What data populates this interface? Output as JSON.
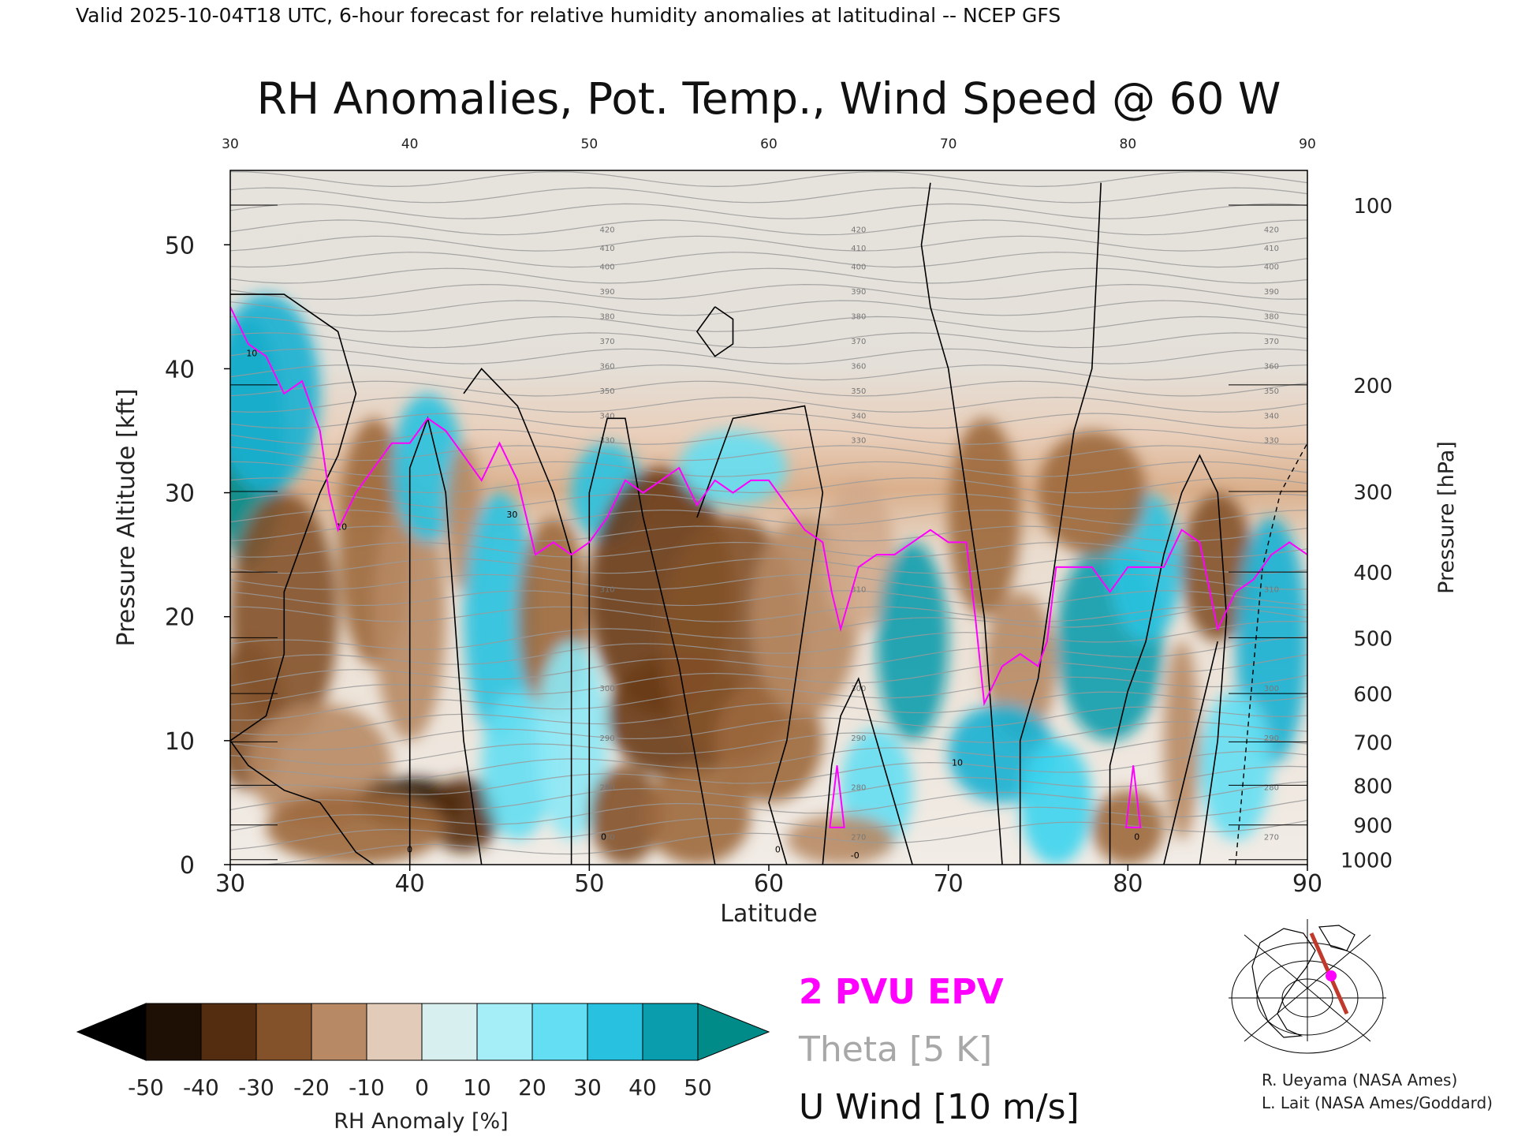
{
  "header": {
    "valid_line": "Valid 2025-10-04T18 UTC, 6-hour forecast for relative humidity anomalies at latitudinal -- NCEP GFS",
    "title": "RH Anomalies, Pot. Temp., Wind Speed @ 60 W"
  },
  "chart_data": {
    "type": "heatmap",
    "title": "RH Anomalies, Pot. Temp., Wind Speed @ 60 W",
    "xlabel": "Latitude",
    "ylabel": "Pressure Altitude [kft]",
    "y2label": "Pressure [hPa]",
    "xlim": [
      30,
      90
    ],
    "ylim": [
      0,
      56
    ],
    "x_ticks": [
      "30",
      "40",
      "50",
      "60",
      "70",
      "80",
      "90"
    ],
    "top_ticks": [
      "30",
      "40",
      "50",
      "60",
      "70",
      "80",
      "90"
    ],
    "y_ticks": [
      "0",
      "10",
      "20",
      "30",
      "40",
      "50"
    ],
    "pressure_ticks": [
      {
        "label": "100",
        "kft": 53.2
      },
      {
        "label": "200",
        "kft": 38.7
      },
      {
        "label": "300",
        "kft": 30.1
      },
      {
        "label": "400",
        "kft": 23.6
      },
      {
        "label": "500",
        "kft": 18.3
      },
      {
        "label": "600",
        "kft": 13.8
      },
      {
        "label": "700",
        "kft": 9.9
      },
      {
        "label": "800",
        "kft": 6.4
      },
      {
        "label": "900",
        "kft": 3.2
      },
      {
        "label": "1000",
        "kft": 0.4
      }
    ],
    "rh_anomaly_fields": [
      {
        "lat": 31,
        "kft": 34,
        "value": 50,
        "dlat": 2,
        "dkft": 10
      },
      {
        "lat": 32,
        "kft": 38,
        "value": 40,
        "dlat": 3,
        "dkft": 8
      },
      {
        "lat": 33,
        "kft": 20,
        "value": -25,
        "dlat": 3,
        "dkft": 10
      },
      {
        "lat": 31,
        "kft": 12,
        "value": -25,
        "dlat": 2,
        "dkft": 6
      },
      {
        "lat": 35,
        "kft": 8,
        "value": -15,
        "dlat": 4,
        "dkft": 5
      },
      {
        "lat": 38,
        "kft": 26,
        "value": -20,
        "dlat": 2,
        "dkft": 10
      },
      {
        "lat": 40,
        "kft": 20,
        "value": -15,
        "dlat": 2,
        "dkft": 10
      },
      {
        "lat": 40,
        "kft": 5,
        "value": -45,
        "dlat": 3,
        "dkft": 2
      },
      {
        "lat": 43,
        "kft": 4,
        "value": -35,
        "dlat": 2,
        "dkft": 3
      },
      {
        "lat": 37,
        "kft": 3,
        "value": -20,
        "dlat": 5,
        "dkft": 3
      },
      {
        "lat": 41,
        "kft": 32,
        "value": 35,
        "dlat": 2,
        "dkft": 6
      },
      {
        "lat": 43,
        "kft": 28,
        "value": -15,
        "dlat": 1,
        "dkft": 6
      },
      {
        "lat": 45,
        "kft": 20,
        "value": 35,
        "dlat": 2,
        "dkft": 10
      },
      {
        "lat": 46,
        "kft": 8,
        "value": 25,
        "dlat": 2,
        "dkft": 6
      },
      {
        "lat": 48,
        "kft": 20,
        "value": -20,
        "dlat": 2,
        "dkft": 8
      },
      {
        "lat": 51,
        "kft": 30,
        "value": 35,
        "dlat": 2,
        "dkft": 4
      },
      {
        "lat": 49,
        "kft": 10,
        "value": 20,
        "dlat": 2,
        "dkft": 8
      },
      {
        "lat": 54,
        "kft": 22,
        "value": -30,
        "dlat": 4,
        "dkft": 10
      },
      {
        "lat": 55,
        "kft": 12,
        "value": -30,
        "dlat": 4,
        "dkft": 5
      },
      {
        "lat": 58,
        "kft": 18,
        "value": -25,
        "dlat": 4,
        "dkft": 10
      },
      {
        "lat": 52,
        "kft": 4,
        "value": -25,
        "dlat": 2,
        "dkft": 4
      },
      {
        "lat": 56,
        "kft": 4,
        "value": -20,
        "dlat": 3,
        "dkft": 4
      },
      {
        "lat": 60,
        "kft": 10,
        "value": -20,
        "dlat": 3,
        "dkft": 5
      },
      {
        "lat": 58,
        "kft": 32,
        "value": 25,
        "dlat": 3,
        "dkft": 3
      },
      {
        "lat": 62,
        "kft": 20,
        "value": -15,
        "dlat": 3,
        "dkft": 8
      },
      {
        "lat": 65,
        "kft": 25,
        "value": -10,
        "dlat": 2,
        "dkft": 6
      },
      {
        "lat": 68,
        "kft": 18,
        "value": 45,
        "dlat": 2,
        "dkft": 8
      },
      {
        "lat": 66,
        "kft": 6,
        "value": 25,
        "dlat": 2,
        "dkft": 5
      },
      {
        "lat": 72,
        "kft": 28,
        "value": -20,
        "dlat": 2,
        "dkft": 8
      },
      {
        "lat": 74,
        "kft": 16,
        "value": -15,
        "dlat": 2,
        "dkft": 6
      },
      {
        "lat": 73,
        "kft": 9,
        "value": 40,
        "dlat": 3,
        "dkft": 4
      },
      {
        "lat": 76,
        "kft": 5,
        "value": 30,
        "dlat": 2,
        "dkft": 5
      },
      {
        "lat": 79,
        "kft": 18,
        "value": 45,
        "dlat": 3,
        "dkft": 8
      },
      {
        "lat": 81,
        "kft": 24,
        "value": 35,
        "dlat": 2,
        "dkft": 6
      },
      {
        "lat": 78,
        "kft": 30,
        "value": -20,
        "dlat": 3,
        "dkft": 5
      },
      {
        "lat": 83,
        "kft": 10,
        "value": -15,
        "dlat": 1,
        "dkft": 8
      },
      {
        "lat": 85,
        "kft": 24,
        "value": -25,
        "dlat": 2,
        "dkft": 6
      },
      {
        "lat": 88,
        "kft": 18,
        "value": 40,
        "dlat": 2,
        "dkft": 10
      },
      {
        "lat": 86,
        "kft": 8,
        "value": 25,
        "dlat": 2,
        "dkft": 6
      },
      {
        "lat": 80,
        "kft": 3,
        "value": -20,
        "dlat": 2,
        "dkft": 3
      },
      {
        "lat": 64,
        "kft": 2,
        "value": -15,
        "dlat": 3,
        "dkft": 2
      }
    ],
    "epv_2pvu": [
      [
        30,
        45
      ],
      [
        31,
        42
      ],
      [
        32,
        41
      ],
      [
        33,
        38
      ],
      [
        34,
        39
      ],
      [
        35,
        35
      ],
      [
        35.5,
        30
      ],
      [
        36,
        27
      ],
      [
        37,
        30
      ],
      [
        38,
        32
      ],
      [
        39,
        34
      ],
      [
        40,
        34
      ],
      [
        41,
        36
      ],
      [
        42,
        35
      ],
      [
        43,
        33
      ],
      [
        44,
        31
      ],
      [
        45,
        34
      ],
      [
        46,
        31
      ],
      [
        47,
        25
      ],
      [
        48,
        26
      ],
      [
        49,
        25
      ],
      [
        50,
        26
      ],
      [
        51,
        28
      ],
      [
        52,
        31
      ],
      [
        53,
        30
      ],
      [
        54,
        31
      ],
      [
        55,
        32
      ],
      [
        56,
        29
      ],
      [
        57,
        31
      ],
      [
        58,
        30
      ],
      [
        59,
        31
      ],
      [
        60,
        31
      ],
      [
        61,
        29
      ],
      [
        62,
        27
      ],
      [
        63,
        26
      ],
      [
        63.5,
        22
      ],
      [
        64,
        19
      ],
      [
        65,
        24
      ],
      [
        66,
        25
      ],
      [
        67,
        25
      ],
      [
        68,
        26
      ],
      [
        69,
        27
      ],
      [
        70,
        26
      ],
      [
        71,
        26
      ],
      [
        71.5,
        20
      ],
      [
        72,
        13
      ],
      [
        73,
        16
      ],
      [
        74,
        17
      ],
      [
        75,
        16
      ],
      [
        75.5,
        18
      ],
      [
        76,
        24
      ],
      [
        77,
        24
      ],
      [
        78,
        24
      ],
      [
        79,
        22
      ],
      [
        80,
        24
      ],
      [
        81,
        24
      ],
      [
        82,
        24
      ],
      [
        83,
        27
      ],
      [
        84,
        26
      ],
      [
        85,
        19
      ],
      [
        86,
        22
      ],
      [
        87,
        23
      ],
      [
        88,
        25
      ],
      [
        89,
        26
      ],
      [
        90,
        25
      ]
    ],
    "theta_labels": [
      "420",
      "410",
      "400",
      "390",
      "380",
      "370",
      "360",
      "350",
      "340",
      "330",
      "310",
      "300",
      "290",
      "280",
      "270"
    ],
    "u_wind_labels": [
      "10",
      "30",
      "0",
      "-0"
    ],
    "rh_colorbar": {
      "ticks": [
        "-50",
        "-40",
        "-30",
        "-20",
        "-10",
        "0",
        "10",
        "20",
        "30",
        "40",
        "50"
      ],
      "label": "RH Anomaly [%]"
    },
    "legend": {
      "epv": "2 PVU EPV",
      "theta": "Theta [5 K]",
      "wind": "U Wind [10 m/s]"
    },
    "colors": {
      "epv": "#ff00ff",
      "theta": "#9a9a9a",
      "wind": "#000000",
      "dry_max": "#000000",
      "dry": "#6a3a17",
      "neutral": "#f1ece6",
      "moist": "#27c8e8",
      "moist_max": "#008a88",
      "stratosphere_bg": "#e4e2dc"
    }
  },
  "credits": {
    "line1": "R. Ueyama (NASA Ames)",
    "line2": "L. Lait (NASA Ames/Goddard)"
  }
}
